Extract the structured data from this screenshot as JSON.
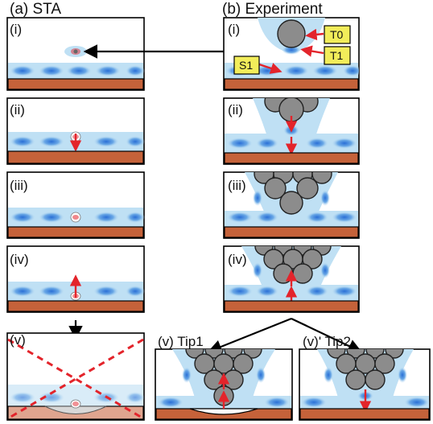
{
  "headers": {
    "a": "(a) STA",
    "b": "(b) Experiment"
  },
  "panel_labels": {
    "a_i": "(i)",
    "a_ii": "(ii)",
    "a_iii": "(iii)",
    "a_iv": "(iv)",
    "a_v": "(v)",
    "b_i": "(i)",
    "b_ii": "(ii)",
    "b_iii": "(iii)",
    "b_iv": "(iv)",
    "tip1": "(v) Tip1",
    "tip2": "(v)' Tip2"
  },
  "tags": {
    "t0": "T0",
    "t1": "T1",
    "s1": "S1"
  },
  "colors": {
    "substrate": "#c5623a",
    "substrate_faded": "#e0a58f",
    "water_layer": "#bfe0f4",
    "lobe_core": "#2a6fd6",
    "atom_fill": "#8c8c8c",
    "arrow_red": "#e3242b",
    "tag_yellow": "#f2ed5a"
  }
}
